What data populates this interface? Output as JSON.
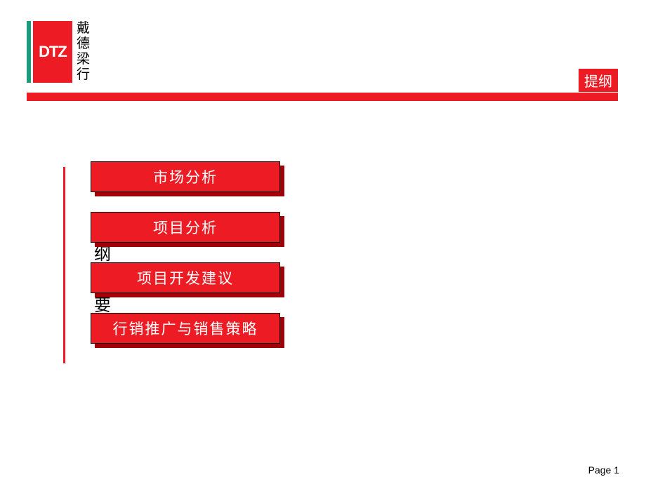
{
  "logo": {
    "en": "DTZ",
    "cn": [
      "戴",
      "德",
      "梁",
      "行"
    ],
    "red": "#ed1c24",
    "green": "#1a9b7a"
  },
  "header": {
    "tag": "提纲"
  },
  "side_label": {
    "c1": "纲",
    "c2": "要"
  },
  "buttons": [
    {
      "label": "市场分析"
    },
    {
      "label": "项目分析"
    },
    {
      "label": "项目开发建议"
    },
    {
      "label": "行销推广与销售策略"
    }
  ],
  "footer": {
    "page": "Page 1"
  },
  "style": {
    "button_bg": "#ed1c24",
    "button_shadow": "#a00008",
    "button_text_color": "#ffffff",
    "rule_color": "#ed1c24",
    "button_width": 270,
    "button_height": 44,
    "button_fontsize": 21
  }
}
